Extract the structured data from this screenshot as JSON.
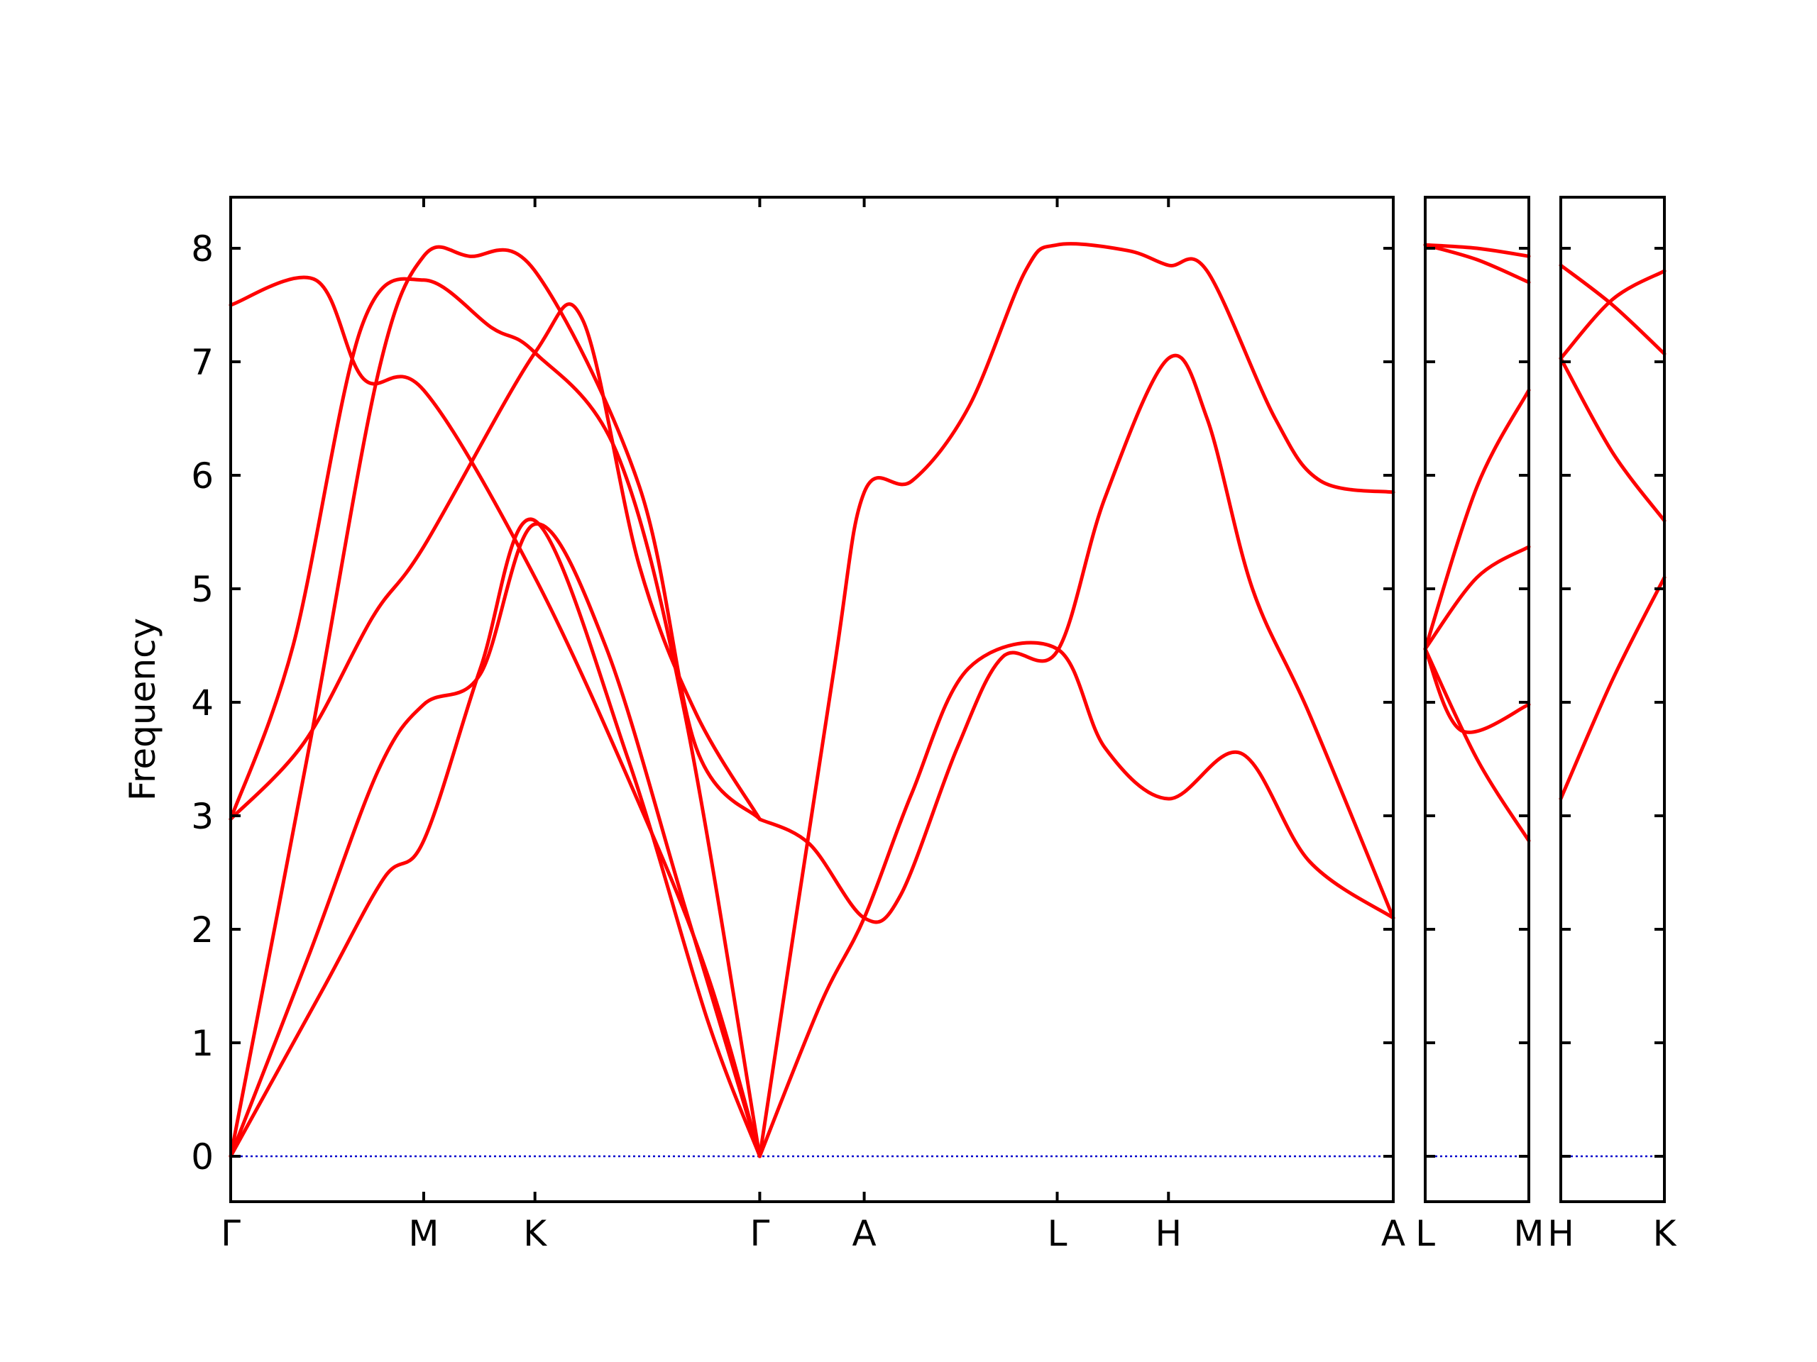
{
  "chart_data": {
    "type": "line",
    "ylabel": "Frequency",
    "ylim": [
      -0.4,
      8.45
    ],
    "yticks": [
      0,
      1,
      2,
      3,
      4,
      5,
      6,
      7,
      8
    ],
    "zero_line": true,
    "line_color": "#ff0000",
    "zero_line_color": "#0000cc",
    "panels": [
      {
        "xlabels": [
          "Γ",
          "M",
          "K",
          "Γ",
          "A",
          "L",
          "H",
          "A"
        ],
        "xticks": [
          0,
          1.7,
          2.68,
          4.66,
          5.58,
          7.28,
          8.26,
          10.24
        ],
        "xlim": [
          0,
          10.24
        ],
        "bands": [
          [
            [
              0,
              7.5
            ],
            [
              0.75,
              7.72
            ],
            [
              1.17,
              6.85
            ],
            [
              1.7,
              6.75
            ],
            [
              2.68,
              5.1
            ],
            [
              3.6,
              3.1
            ],
            [
              4.2,
              1.6
            ],
            [
              4.66,
              0.0
            ]
          ],
          [
            [
              0,
              2.97
            ],
            [
              0.65,
              3.65
            ],
            [
              1.25,
              4.75
            ],
            [
              1.7,
              5.37
            ],
            [
              2.68,
              7.08
            ],
            [
              3.1,
              7.37
            ],
            [
              3.6,
              5.2
            ],
            [
              4.1,
              3.9
            ],
            [
              4.66,
              2.97
            ]
          ],
          [
            [
              0,
              0.0
            ],
            [
              0.7,
              3.65
            ],
            [
              1.3,
              6.9
            ],
            [
              1.7,
              7.93
            ],
            [
              2.1,
              7.93
            ],
            [
              2.68,
              7.8
            ],
            [
              3.6,
              5.9
            ],
            [
              4.1,
              3.6
            ],
            [
              4.66,
              2.97
            ]
          ],
          [
            [
              0,
              2.97
            ],
            [
              0.55,
              4.5
            ],
            [
              1.15,
              7.3
            ],
            [
              1.7,
              7.72
            ],
            [
              2.3,
              7.3
            ],
            [
              2.68,
              7.08
            ],
            [
              3.4,
              6.2
            ],
            [
              4.0,
              3.9
            ],
            [
              4.66,
              0.0
            ]
          ],
          [
            [
              0,
              0.0
            ],
            [
              0.7,
              1.8
            ],
            [
              1.3,
              3.4
            ],
            [
              1.7,
              3.98
            ],
            [
              2.2,
              4.25
            ],
            [
              2.68,
              5.57
            ],
            [
              3.3,
              4.5
            ],
            [
              4.0,
              2.2
            ],
            [
              4.66,
              0.0
            ]
          ],
          [
            [
              0,
              0.0
            ],
            [
              0.8,
              1.45
            ],
            [
              1.35,
              2.45
            ],
            [
              1.7,
              2.78
            ],
            [
              2.2,
              4.3
            ],
            [
              2.68,
              5.6
            ],
            [
              3.5,
              3.5
            ],
            [
              4.2,
              1.2
            ],
            [
              4.66,
              0.0
            ]
          ],
          [
            [
              4.66,
              0.0
            ],
            [
              5.3,
              4.2
            ],
            [
              5.58,
              5.85
            ],
            [
              6.0,
              5.95
            ],
            [
              6.5,
              6.6
            ],
            [
              7.0,
              7.8
            ],
            [
              7.28,
              8.03
            ],
            [
              7.9,
              7.98
            ],
            [
              8.26,
              7.85
            ],
            [
              8.6,
              7.8
            ],
            [
              9.2,
              6.5
            ],
            [
              9.6,
              5.95
            ],
            [
              10.24,
              5.85
            ]
          ],
          [
            [
              4.66,
              2.97
            ],
            [
              5.1,
              2.75
            ],
            [
              5.58,
              2.1
            ],
            [
              5.9,
              2.3
            ],
            [
              6.4,
              3.6
            ],
            [
              6.8,
              4.4
            ],
            [
              7.28,
              4.45
            ],
            [
              7.7,
              5.8
            ],
            [
              8.26,
              7.03
            ],
            [
              8.6,
              6.5
            ],
            [
              9.0,
              5.0
            ],
            [
              9.5,
              3.9
            ],
            [
              10.24,
              2.1
            ]
          ],
          [
            [
              4.66,
              0.0
            ],
            [
              5.2,
              1.35
            ],
            [
              5.58,
              2.1
            ],
            [
              6.0,
              3.2
            ],
            [
              6.5,
              4.3
            ],
            [
              7.28,
              4.47
            ],
            [
              7.7,
              3.6
            ],
            [
              8.26,
              3.15
            ],
            [
              8.9,
              3.55
            ],
            [
              9.5,
              2.6
            ],
            [
              10.24,
              2.1
            ]
          ]
        ]
      },
      {
        "xlabels": [
          "L",
          "M"
        ],
        "xticks": [
          0,
          1
        ],
        "xlim": [
          0,
          1
        ],
        "bands": [
          [
            [
              0,
              8.03
            ],
            [
              0.5,
              8.0
            ],
            [
              1,
              7.93
            ]
          ],
          [
            [
              0,
              8.03
            ],
            [
              0.5,
              7.9
            ],
            [
              1,
              7.7
            ]
          ],
          [
            [
              0,
              4.47
            ],
            [
              0.5,
              5.9
            ],
            [
              1,
              6.75
            ]
          ],
          [
            [
              0,
              4.47
            ],
            [
              0.5,
              5.1
            ],
            [
              1,
              5.37
            ]
          ],
          [
            [
              0,
              4.47
            ],
            [
              0.35,
              3.75
            ],
            [
              1,
              3.98
            ]
          ],
          [
            [
              0,
              4.47
            ],
            [
              0.5,
              3.5
            ],
            [
              1,
              2.78
            ]
          ]
        ]
      },
      {
        "xlabels": [
          "H",
          "K"
        ],
        "xticks": [
          0,
          1
        ],
        "xlim": [
          0,
          1
        ],
        "bands": [
          [
            [
              0,
              7.85
            ],
            [
              0.5,
              7.5
            ],
            [
              1,
              7.07
            ]
          ],
          [
            [
              0,
              7.03
            ],
            [
              0.5,
              7.55
            ],
            [
              1,
              7.8
            ]
          ],
          [
            [
              0,
              7.03
            ],
            [
              0.5,
              6.2
            ],
            [
              1,
              5.6
            ]
          ],
          [
            [
              0,
              3.15
            ],
            [
              0.5,
              4.2
            ],
            [
              1,
              5.1
            ]
          ]
        ]
      }
    ]
  }
}
